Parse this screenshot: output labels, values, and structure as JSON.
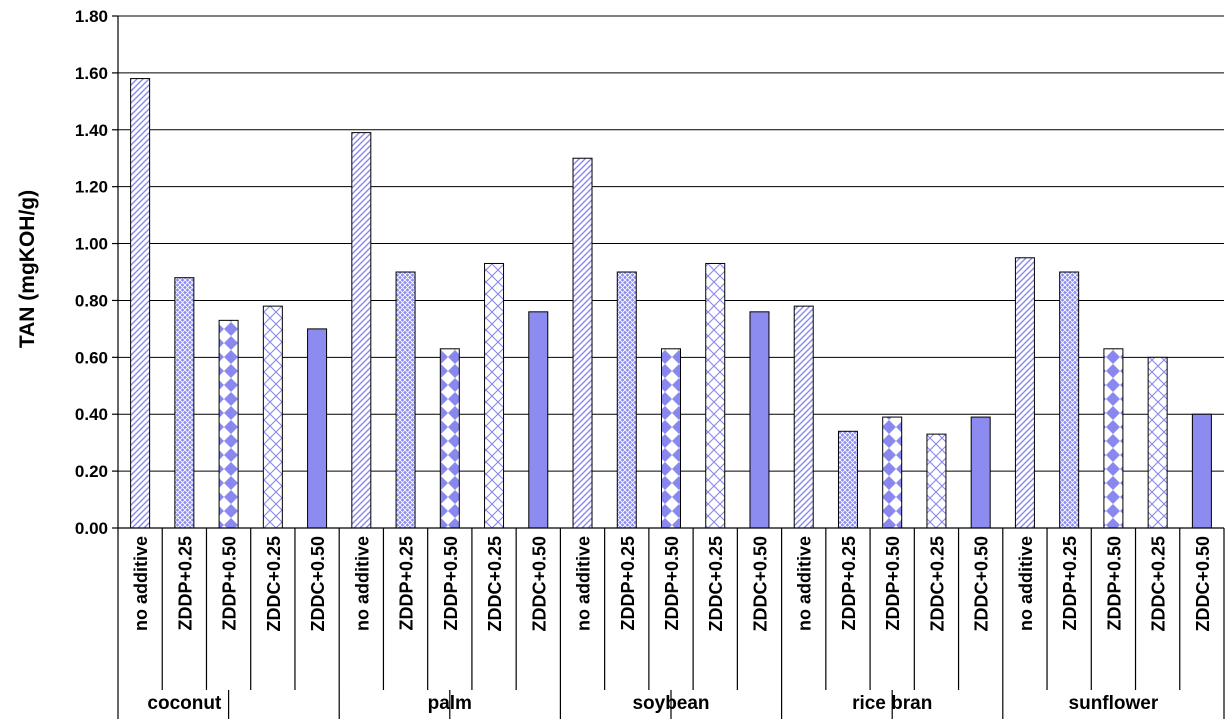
{
  "chart_data": {
    "type": "bar",
    "title": "",
    "xlabel": "",
    "ylabel": "TAN (mgKOH/g)",
    "ylim": [
      0,
      1.8
    ],
    "yticks": [
      "0.00",
      "0.20",
      "0.40",
      "0.60",
      "0.80",
      "1.00",
      "1.20",
      "1.40",
      "1.60",
      "1.80"
    ],
    "grid": true,
    "groups": [
      "coconut",
      "palm",
      "soybean",
      "rice bran",
      "sunflower"
    ],
    "categories": [
      "no additive",
      "ZDDP+0.25",
      "ZDDP+0.50",
      "ZDDC+0.25",
      "ZDDC+0.50",
      "no additive",
      "ZDDP+0.25",
      "ZDDP+0.50",
      "ZDDC+0.25",
      "ZDDC+0.50",
      "no additive",
      "ZDDP+0.25",
      "ZDDP+0.50",
      "ZDDC+0.25",
      "ZDDC+0.50",
      "no additive",
      "ZDDP+0.25",
      "ZDDP+0.50",
      "ZDDC+0.25",
      "ZDDC+0.50",
      "no additive",
      "ZDDP+0.25",
      "ZDDP+0.50",
      "ZDDC+0.25",
      "ZDDC+0.50"
    ],
    "values": [
      1.58,
      0.88,
      0.73,
      0.78,
      0.7,
      1.39,
      0.9,
      0.63,
      0.93,
      0.76,
      1.3,
      0.9,
      0.63,
      0.93,
      0.76,
      0.78,
      0.34,
      0.39,
      0.33,
      0.39,
      0.95,
      0.9,
      0.63,
      0.6,
      0.4
    ],
    "colors": {
      "accent": "#8888ee",
      "solid": "#8c8cf0",
      "background": "#ffffff"
    }
  }
}
